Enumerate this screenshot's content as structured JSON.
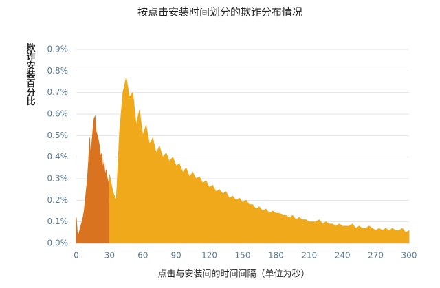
{
  "chart_data": {
    "type": "area",
    "title": "按点击安装时间划分的欺诈分布情况",
    "y_label": "欺诈安装百分比",
    "x_label": "点击与安装间的时间间隔（单位为秒）",
    "xlim": [
      0,
      300
    ],
    "xticks": [
      0,
      30,
      60,
      90,
      120,
      150,
      180,
      210,
      240,
      270,
      300
    ],
    "ylim": [
      0,
      0.9
    ],
    "yticks": [
      {
        "value": 0,
        "label": "0.0%"
      },
      {
        "value": 0.1,
        "label": "0.1%"
      },
      {
        "value": 0.2,
        "label": "0.2%"
      },
      {
        "value": 0.3,
        "label": "0.3%"
      },
      {
        "value": 0.4,
        "label": "0.4%"
      },
      {
        "value": 0.5,
        "label": "0.5%"
      },
      {
        "value": 0.6,
        "label": "0.6%"
      },
      {
        "value": 0.7,
        "label": "0.7%"
      },
      {
        "value": 0.8,
        "label": "0.8%"
      },
      {
        "value": 0.9,
        "label": "0.9%"
      }
    ],
    "grid": true,
    "series": [
      {
        "color": "#d9731f",
        "x": [
          0,
          1,
          2,
          3,
          4,
          5,
          6,
          7,
          8,
          9,
          10,
          11,
          12,
          13,
          14,
          15,
          16,
          17,
          18,
          19,
          20,
          21,
          22,
          23,
          24,
          25,
          26,
          27,
          28,
          29,
          30
        ],
        "values": [
          0.12,
          0.05,
          0.04,
          0.06,
          0.08,
          0.1,
          0.12,
          0.15,
          0.2,
          0.25,
          0.3,
          0.38,
          0.49,
          0.4,
          0.47,
          0.53,
          0.58,
          0.59,
          0.52,
          0.5,
          0.48,
          0.45,
          0.4,
          0.42,
          0.35,
          0.38,
          0.32,
          0.34,
          0.3,
          0.28,
          0.3
        ]
      },
      {
        "color": "#f0a91b",
        "x": [
          30,
          33,
          36,
          39,
          42,
          45,
          48,
          51,
          54,
          57,
          60,
          63,
          66,
          69,
          72,
          75,
          78,
          81,
          84,
          87,
          90,
          93,
          96,
          99,
          102,
          105,
          108,
          111,
          114,
          117,
          120,
          123,
          126,
          129,
          132,
          135,
          138,
          141,
          144,
          147,
          150,
          153,
          156,
          159,
          162,
          165,
          168,
          171,
          174,
          177,
          180,
          183,
          186,
          189,
          192,
          195,
          198,
          201,
          204,
          207,
          210,
          213,
          216,
          219,
          222,
          225,
          228,
          231,
          234,
          237,
          240,
          243,
          246,
          249,
          252,
          255,
          258,
          261,
          264,
          267,
          270,
          273,
          276,
          279,
          282,
          285,
          288,
          291,
          294,
          297,
          300
        ],
        "values": [
          0.32,
          0.24,
          0.2,
          0.52,
          0.7,
          0.77,
          0.68,
          0.7,
          0.55,
          0.62,
          0.5,
          0.55,
          0.46,
          0.49,
          0.42,
          0.45,
          0.4,
          0.42,
          0.38,
          0.4,
          0.36,
          0.37,
          0.33,
          0.35,
          0.31,
          0.33,
          0.3,
          0.31,
          0.28,
          0.29,
          0.26,
          0.27,
          0.24,
          0.25,
          0.23,
          0.24,
          0.21,
          0.22,
          0.2,
          0.21,
          0.19,
          0.2,
          0.18,
          0.18,
          0.16,
          0.17,
          0.15,
          0.16,
          0.14,
          0.15,
          0.14,
          0.14,
          0.13,
          0.13,
          0.12,
          0.13,
          0.11,
          0.12,
          0.11,
          0.11,
          0.1,
          0.1,
          0.1,
          0.11,
          0.09,
          0.1,
          0.09,
          0.09,
          0.08,
          0.09,
          0.08,
          0.08,
          0.08,
          0.09,
          0.07,
          0.08,
          0.07,
          0.07,
          0.08,
          0.07,
          0.06,
          0.07,
          0.06,
          0.07,
          0.06,
          0.07,
          0.06,
          0.06,
          0.07,
          0.05,
          0.06
        ]
      }
    ]
  }
}
